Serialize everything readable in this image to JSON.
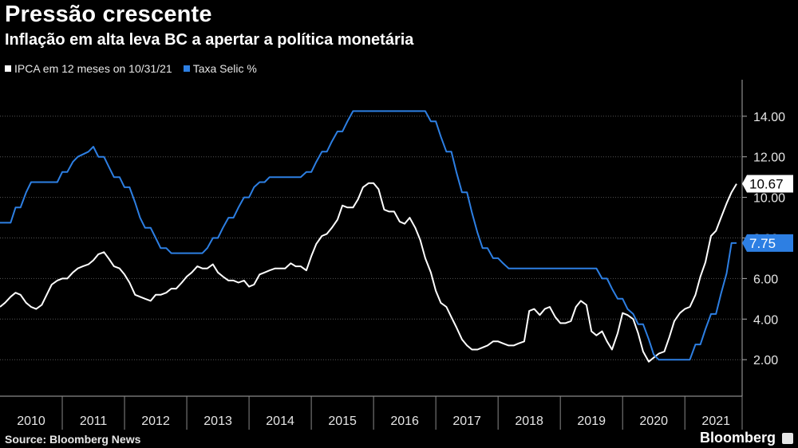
{
  "chart_data": {
    "type": "line",
    "title": "Pressão crescente",
    "subtitle": "Inflação em alta leva BC a apertar a política monetária",
    "source": "Source: Bloomberg News",
    "brand": "Bloomberg",
    "x_categories": [
      "2010",
      "2011",
      "2012",
      "2013",
      "2014",
      "2015",
      "2016",
      "2017",
      "2018",
      "2019",
      "2020",
      "2021"
    ],
    "xlim": [
      2010.0,
      2021.92
    ],
    "ylim": [
      0.2,
      15.8
    ],
    "yticks": [
      "2.00",
      "4.00",
      "6.00",
      "8.00",
      "10.00",
      "12.00",
      "14.00"
    ],
    "series": [
      {
        "name": "IPCA em 12 meses on 10/31/21",
        "color": "#ffffff",
        "last_label": "10.67",
        "points": [
          [
            2010.0,
            4.6
          ],
          [
            2010.08,
            4.8
          ],
          [
            2010.17,
            5.1
          ],
          [
            2010.25,
            5.3
          ],
          [
            2010.33,
            5.2
          ],
          [
            2010.42,
            4.8
          ],
          [
            2010.5,
            4.6
          ],
          [
            2010.58,
            4.5
          ],
          [
            2010.67,
            4.7
          ],
          [
            2010.75,
            5.2
          ],
          [
            2010.83,
            5.7
          ],
          [
            2010.92,
            5.9
          ],
          [
            2011.0,
            6.0
          ],
          [
            2011.08,
            6.0
          ],
          [
            2011.17,
            6.3
          ],
          [
            2011.25,
            6.5
          ],
          [
            2011.33,
            6.6
          ],
          [
            2011.42,
            6.7
          ],
          [
            2011.5,
            6.9
          ],
          [
            2011.58,
            7.2
          ],
          [
            2011.67,
            7.3
          ],
          [
            2011.75,
            6.97
          ],
          [
            2011.83,
            6.6
          ],
          [
            2011.92,
            6.5
          ],
          [
            2012.0,
            6.2
          ],
          [
            2012.08,
            5.8
          ],
          [
            2012.17,
            5.2
          ],
          [
            2012.25,
            5.1
          ],
          [
            2012.33,
            5.0
          ],
          [
            2012.42,
            4.9
          ],
          [
            2012.5,
            5.2
          ],
          [
            2012.58,
            5.2
          ],
          [
            2012.67,
            5.3
          ],
          [
            2012.75,
            5.5
          ],
          [
            2012.83,
            5.5
          ],
          [
            2012.92,
            5.8
          ],
          [
            2013.0,
            6.1
          ],
          [
            2013.08,
            6.3
          ],
          [
            2013.17,
            6.6
          ],
          [
            2013.25,
            6.5
          ],
          [
            2013.33,
            6.5
          ],
          [
            2013.42,
            6.7
          ],
          [
            2013.5,
            6.3
          ],
          [
            2013.58,
            6.1
          ],
          [
            2013.67,
            5.9
          ],
          [
            2013.75,
            5.9
          ],
          [
            2013.83,
            5.8
          ],
          [
            2013.92,
            5.9
          ],
          [
            2014.0,
            5.6
          ],
          [
            2014.08,
            5.7
          ],
          [
            2014.17,
            6.2
          ],
          [
            2014.25,
            6.3
          ],
          [
            2014.33,
            6.4
          ],
          [
            2014.42,
            6.5
          ],
          [
            2014.5,
            6.5
          ],
          [
            2014.58,
            6.5
          ],
          [
            2014.67,
            6.75
          ],
          [
            2014.75,
            6.6
          ],
          [
            2014.83,
            6.6
          ],
          [
            2014.92,
            6.4
          ],
          [
            2015.0,
            7.1
          ],
          [
            2015.08,
            7.7
          ],
          [
            2015.17,
            8.1
          ],
          [
            2015.25,
            8.2
          ],
          [
            2015.33,
            8.5
          ],
          [
            2015.42,
            8.9
          ],
          [
            2015.5,
            9.6
          ],
          [
            2015.58,
            9.5
          ],
          [
            2015.67,
            9.5
          ],
          [
            2015.75,
            9.9
          ],
          [
            2015.83,
            10.5
          ],
          [
            2015.92,
            10.7
          ],
          [
            2016.0,
            10.7
          ],
          [
            2016.08,
            10.4
          ],
          [
            2016.17,
            9.4
          ],
          [
            2016.25,
            9.3
          ],
          [
            2016.33,
            9.3
          ],
          [
            2016.42,
            8.8
          ],
          [
            2016.5,
            8.7
          ],
          [
            2016.58,
            9.0
          ],
          [
            2016.67,
            8.5
          ],
          [
            2016.75,
            7.9
          ],
          [
            2016.83,
            7.0
          ],
          [
            2016.92,
            6.3
          ],
          [
            2017.0,
            5.4
          ],
          [
            2017.08,
            4.8
          ],
          [
            2017.17,
            4.6
          ],
          [
            2017.25,
            4.1
          ],
          [
            2017.33,
            3.6
          ],
          [
            2017.42,
            3.0
          ],
          [
            2017.5,
            2.7
          ],
          [
            2017.58,
            2.5
          ],
          [
            2017.67,
            2.5
          ],
          [
            2017.75,
            2.6
          ],
          [
            2017.83,
            2.7
          ],
          [
            2017.92,
            2.9
          ],
          [
            2018.0,
            2.9
          ],
          [
            2018.08,
            2.8
          ],
          [
            2018.17,
            2.7
          ],
          [
            2018.25,
            2.7
          ],
          [
            2018.33,
            2.8
          ],
          [
            2018.42,
            2.9
          ],
          [
            2018.5,
            4.4
          ],
          [
            2018.58,
            4.5
          ],
          [
            2018.67,
            4.2
          ],
          [
            2018.75,
            4.5
          ],
          [
            2018.83,
            4.6
          ],
          [
            2018.92,
            4.1
          ],
          [
            2019.0,
            3.8
          ],
          [
            2019.08,
            3.8
          ],
          [
            2019.17,
            3.9
          ],
          [
            2019.25,
            4.6
          ],
          [
            2019.33,
            4.9
          ],
          [
            2019.42,
            4.7
          ],
          [
            2019.5,
            3.4
          ],
          [
            2019.58,
            3.2
          ],
          [
            2019.67,
            3.4
          ],
          [
            2019.75,
            2.9
          ],
          [
            2019.83,
            2.5
          ],
          [
            2019.92,
            3.3
          ],
          [
            2020.0,
            4.3
          ],
          [
            2020.08,
            4.2
          ],
          [
            2020.17,
            4.0
          ],
          [
            2020.25,
            3.3
          ],
          [
            2020.33,
            2.4
          ],
          [
            2020.42,
            1.9
          ],
          [
            2020.5,
            2.1
          ],
          [
            2020.58,
            2.3
          ],
          [
            2020.67,
            2.4
          ],
          [
            2020.75,
            3.1
          ],
          [
            2020.83,
            3.9
          ],
          [
            2020.92,
            4.3
          ],
          [
            2021.0,
            4.5
          ],
          [
            2021.08,
            4.6
          ],
          [
            2021.17,
            5.2
          ],
          [
            2021.25,
            6.1
          ],
          [
            2021.33,
            6.8
          ],
          [
            2021.42,
            8.1
          ],
          [
            2021.5,
            8.35
          ],
          [
            2021.58,
            9.0
          ],
          [
            2021.67,
            9.7
          ],
          [
            2021.75,
            10.25
          ],
          [
            2021.83,
            10.67
          ]
        ]
      },
      {
        "name": "Taxa Selic %",
        "color": "#2d7fe3",
        "last_label": "7.75",
        "points": [
          [
            2010.0,
            8.75
          ],
          [
            2010.17,
            8.75
          ],
          [
            2010.25,
            9.5
          ],
          [
            2010.33,
            9.5
          ],
          [
            2010.42,
            10.25
          ],
          [
            2010.5,
            10.75
          ],
          [
            2010.92,
            10.75
          ],
          [
            2011.0,
            11.25
          ],
          [
            2011.08,
            11.25
          ],
          [
            2011.17,
            11.75
          ],
          [
            2011.25,
            12.0
          ],
          [
            2011.42,
            12.25
          ],
          [
            2011.5,
            12.5
          ],
          [
            2011.58,
            12.0
          ],
          [
            2011.67,
            12.0
          ],
          [
            2011.75,
            11.5
          ],
          [
            2011.83,
            11.0
          ],
          [
            2011.92,
            11.0
          ],
          [
            2012.0,
            10.5
          ],
          [
            2012.08,
            10.5
          ],
          [
            2012.17,
            9.75
          ],
          [
            2012.25,
            9.0
          ],
          [
            2012.33,
            8.5
          ],
          [
            2012.42,
            8.5
          ],
          [
            2012.5,
            8.0
          ],
          [
            2012.58,
            7.5
          ],
          [
            2012.67,
            7.5
          ],
          [
            2012.75,
            7.25
          ],
          [
            2013.25,
            7.25
          ],
          [
            2013.33,
            7.5
          ],
          [
            2013.42,
            8.0
          ],
          [
            2013.5,
            8.0
          ],
          [
            2013.58,
            8.5
          ],
          [
            2013.67,
            9.0
          ],
          [
            2013.75,
            9.0
          ],
          [
            2013.83,
            9.5
          ],
          [
            2013.92,
            10.0
          ],
          [
            2014.0,
            10.0
          ],
          [
            2014.08,
            10.5
          ],
          [
            2014.17,
            10.75
          ],
          [
            2014.25,
            10.75
          ],
          [
            2014.33,
            11.0
          ],
          [
            2014.83,
            11.0
          ],
          [
            2014.92,
            11.25
          ],
          [
            2015.0,
            11.25
          ],
          [
            2015.08,
            11.75
          ],
          [
            2015.17,
            12.25
          ],
          [
            2015.25,
            12.25
          ],
          [
            2015.33,
            12.75
          ],
          [
            2015.42,
            13.25
          ],
          [
            2015.5,
            13.25
          ],
          [
            2015.58,
            13.75
          ],
          [
            2015.67,
            14.25
          ],
          [
            2016.83,
            14.25
          ],
          [
            2016.92,
            13.75
          ],
          [
            2017.0,
            13.75
          ],
          [
            2017.08,
            13.0
          ],
          [
            2017.17,
            12.25
          ],
          [
            2017.25,
            12.25
          ],
          [
            2017.33,
            11.25
          ],
          [
            2017.42,
            10.25
          ],
          [
            2017.5,
            10.25
          ],
          [
            2017.58,
            9.25
          ],
          [
            2017.67,
            8.25
          ],
          [
            2017.75,
            7.5
          ],
          [
            2017.83,
            7.5
          ],
          [
            2017.92,
            7.0
          ],
          [
            2018.0,
            7.0
          ],
          [
            2018.08,
            6.75
          ],
          [
            2018.17,
            6.5
          ],
          [
            2019.58,
            6.5
          ],
          [
            2019.67,
            6.0
          ],
          [
            2019.75,
            6.0
          ],
          [
            2019.83,
            5.5
          ],
          [
            2019.92,
            5.0
          ],
          [
            2020.0,
            5.0
          ],
          [
            2020.08,
            4.5
          ],
          [
            2020.17,
            4.25
          ],
          [
            2020.25,
            3.75
          ],
          [
            2020.33,
            3.75
          ],
          [
            2020.42,
            3.0
          ],
          [
            2020.5,
            2.25
          ],
          [
            2020.58,
            2.0
          ],
          [
            2021.08,
            2.0
          ],
          [
            2021.17,
            2.75
          ],
          [
            2021.25,
            2.75
          ],
          [
            2021.33,
            3.5
          ],
          [
            2021.42,
            4.25
          ],
          [
            2021.5,
            4.25
          ],
          [
            2021.58,
            5.25
          ],
          [
            2021.67,
            6.25
          ],
          [
            2021.75,
            7.75
          ],
          [
            2021.83,
            7.75
          ]
        ]
      }
    ]
  }
}
